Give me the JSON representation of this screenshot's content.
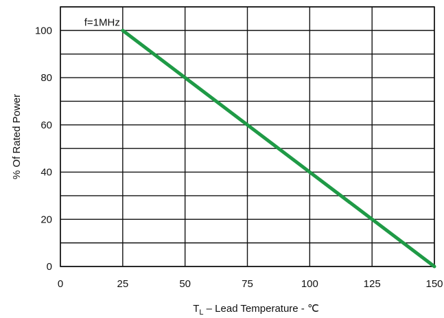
{
  "chart_data": {
    "type": "line",
    "title": "",
    "xlabel_main": "T",
    "xlabel_sub": "L",
    "xlabel_suffix": " – Lead Temperature - ℃",
    "ylabel": "% Of Rated Power",
    "xlim": [
      0,
      150
    ],
    "ylim": [
      0,
      110
    ],
    "x_ticks": [
      0,
      25,
      50,
      75,
      100,
      125,
      150
    ],
    "y_ticks": [
      0,
      20,
      40,
      60,
      80,
      100
    ],
    "x_grid": [
      0,
      25,
      50,
      75,
      100,
      125,
      150
    ],
    "y_grid": [
      0,
      10,
      20,
      30,
      40,
      50,
      60,
      70,
      80,
      90,
      100,
      110
    ],
    "grid": true,
    "series": [
      {
        "name": "f=1MHz",
        "color": "#1f9a46",
        "x": [
          25,
          150
        ],
        "y": [
          100,
          0
        ]
      }
    ],
    "annotation": "f=1MHz"
  }
}
